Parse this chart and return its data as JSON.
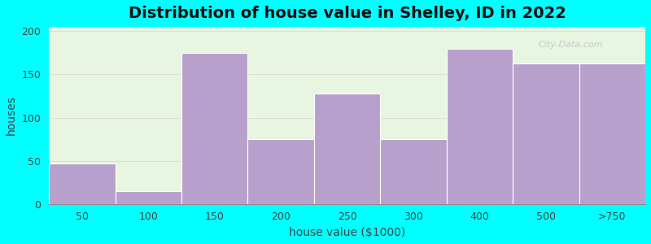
{
  "title": "Distribution of house value in Shelley, ID in 2022",
  "xlabel": "house value ($1000)",
  "ylabel": "houses",
  "tick_labels": [
    "50",
    "100",
    "150",
    "200",
    "250",
    "300",
    "400",
    "500",
    ">750"
  ],
  "bar_lefts": [
    0,
    1,
    2,
    3,
    4,
    5,
    6,
    7,
    8
  ],
  "bar_widths": [
    1,
    1,
    1,
    1,
    1,
    1,
    1,
    1,
    1
  ],
  "values": [
    47,
    15,
    175,
    75,
    128,
    75,
    180,
    163,
    163
  ],
  "bar_color": "#b8a0cc",
  "bar_edge_color": "#ffffff",
  "ylim": [
    0,
    205
  ],
  "yticks": [
    0,
    50,
    100,
    150,
    200
  ],
  "bg_outer": "#00FFFF",
  "bg_plot_top": "#e8f5e0",
  "bg_plot_bottom": "#f8fff8",
  "title_fontsize": 14,
  "label_fontsize": 10,
  "tick_fontsize": 9,
  "watermark": "City-Data.com"
}
